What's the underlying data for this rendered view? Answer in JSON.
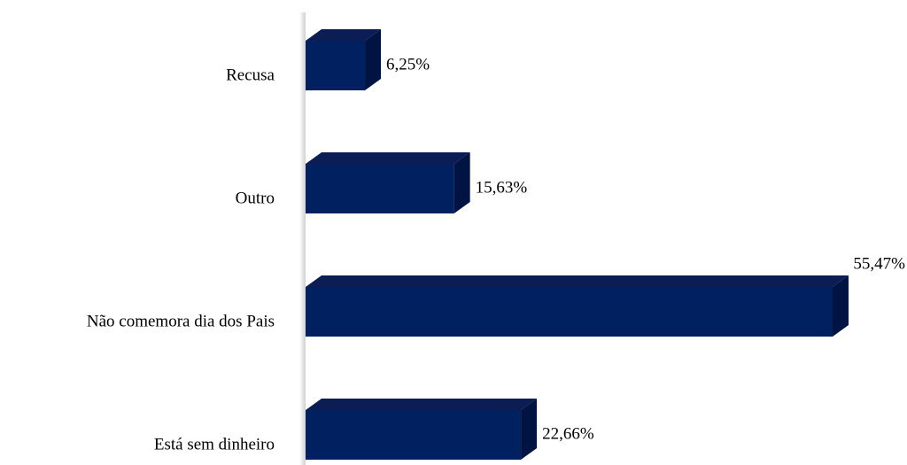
{
  "chart_data": {
    "type": "bar",
    "orientation": "horizontal",
    "categories": [
      "Recusa",
      "Outro",
      "Não comemora dia dos Pais",
      "Está sem dinheiro"
    ],
    "values": [
      6.25,
      15.63,
      55.47,
      22.66
    ],
    "value_labels": [
      "6,25%",
      "15,63%",
      "55,47%",
      "22,66%"
    ],
    "color": "#002060"
  }
}
